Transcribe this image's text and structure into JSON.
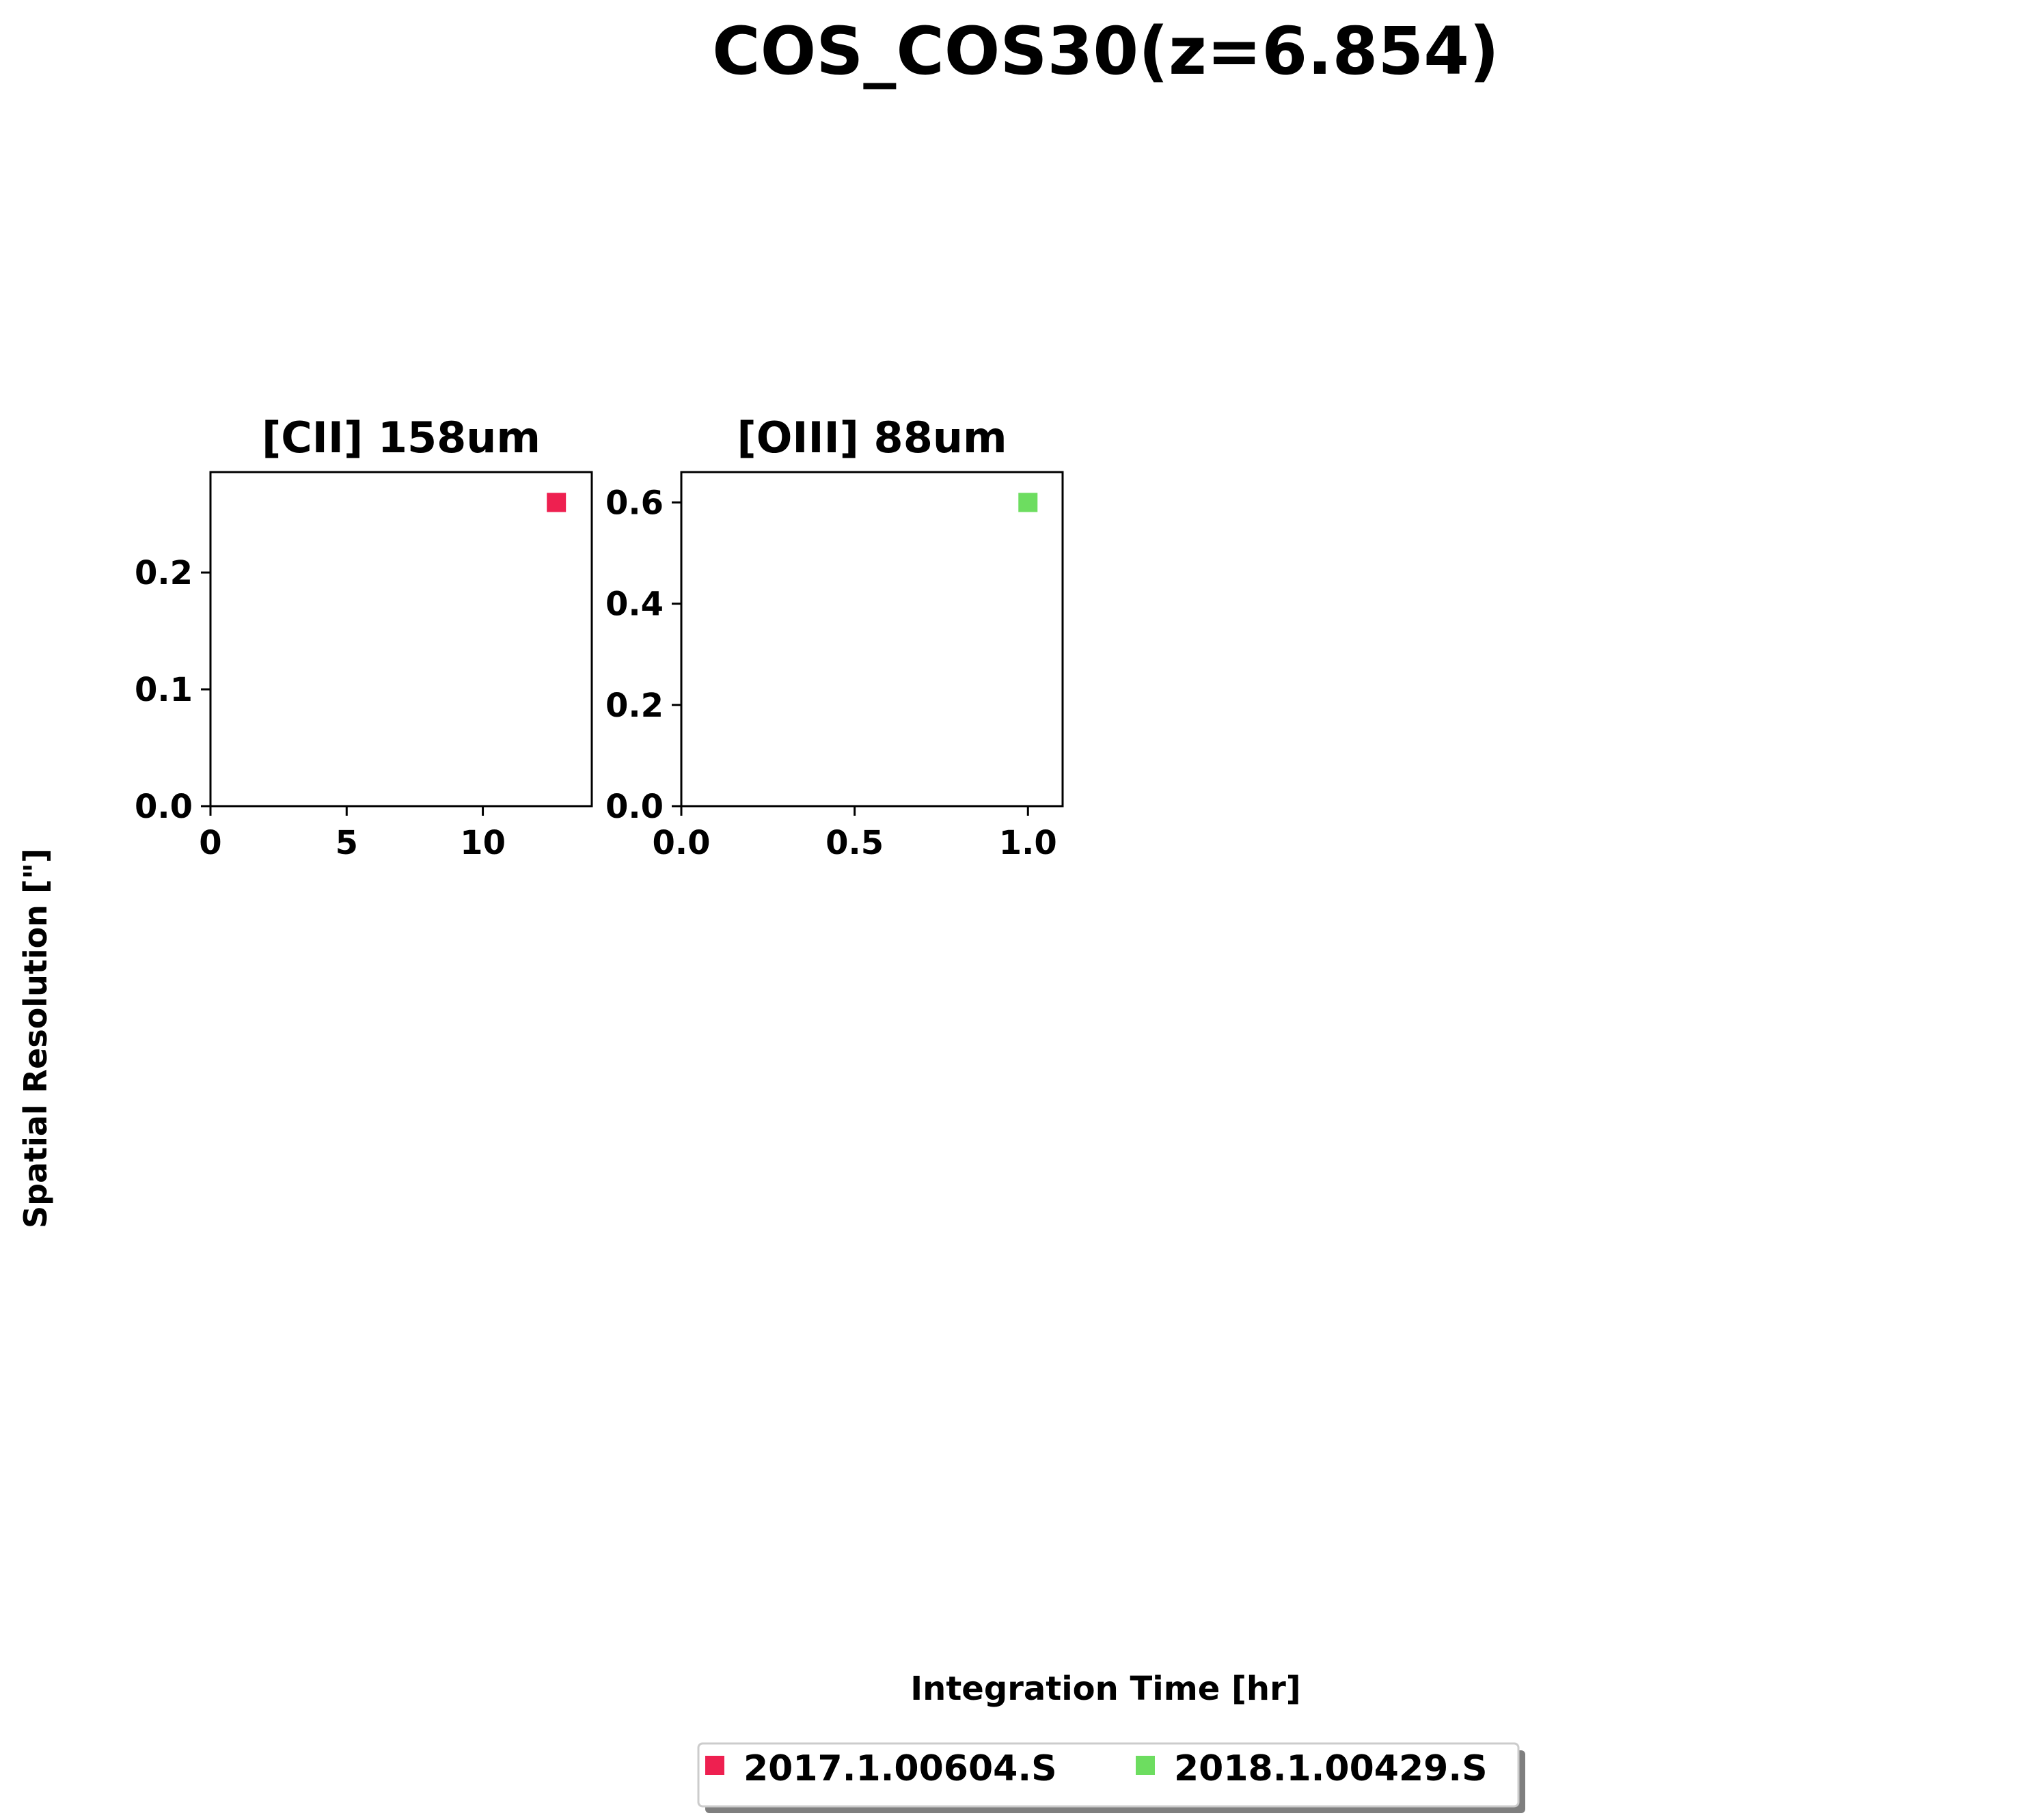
{
  "figure": {
    "title": "COS_COS30(z=6.854)",
    "xlabel": "Integration Time [hr]",
    "ylabel": "Spatial Resolution [\"]"
  },
  "chart_data": [
    {
      "type": "scatter",
      "title": "[CII] 158um",
      "xlim": [
        0,
        14
      ],
      "ylim": [
        0,
        0.286
      ],
      "xticks": [
        0,
        5,
        10
      ],
      "xtick_labels": [
        "0",
        "5",
        "10"
      ],
      "yticks": [
        0.0,
        0.1,
        0.2
      ],
      "ytick_labels": [
        "0.0",
        "0.1",
        "0.2"
      ],
      "grid": false,
      "series": [
        {
          "name": "2017.1.00604.S",
          "color": "#ee2050",
          "marker": "square",
          "points": [
            {
              "x": 12.7,
              "y": 0.26
            }
          ]
        }
      ]
    },
    {
      "type": "scatter",
      "title": "[OIII] 88um",
      "xlim": [
        0,
        1.1
      ],
      "ylim": [
        0,
        0.66
      ],
      "xticks": [
        0.0,
        0.5,
        1.0
      ],
      "xtick_labels": [
        "0.0",
        "0.5",
        "1.0"
      ],
      "yticks": [
        0.0,
        0.2,
        0.4,
        0.6
      ],
      "ytick_labels": [
        "0.0",
        "0.2",
        "0.4",
        "0.6"
      ],
      "grid": false,
      "series": [
        {
          "name": "2018.1.00429.S",
          "color": "#6ddd60",
          "marker": "square",
          "points": [
            {
              "x": 1.0,
              "y": 0.6
            }
          ]
        }
      ]
    }
  ],
  "legend": {
    "placement": "bottom-center",
    "entries": [
      {
        "label": "2017.1.00604.S",
        "color": "#ee2050"
      },
      {
        "label": "2018.1.00429.S",
        "color": "#6ddd60"
      }
    ]
  }
}
